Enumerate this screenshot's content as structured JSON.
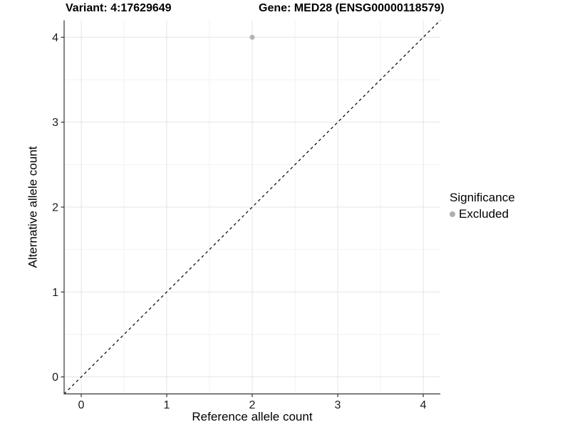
{
  "chart_data": {
    "type": "scatter",
    "title_left": "Variant: 4:17629649",
    "title_right": "Gene: MED28 (ENSG00000118579)",
    "xlabel": "Reference allele count",
    "ylabel": "Alternative allele count",
    "xlim": [
      -0.2,
      4.2
    ],
    "ylim": [
      -0.2,
      4.2
    ],
    "xticks": [
      0,
      1,
      2,
      3,
      4
    ],
    "yticks": [
      0,
      1,
      2,
      3,
      4
    ],
    "xticks_minor": [
      0.5,
      1.5,
      2.5,
      3.5
    ],
    "yticks_minor": [
      0.5,
      1.5,
      2.5,
      3.5
    ],
    "grid": "major and minor gridlines on white background",
    "reference_line": {
      "type": "identity",
      "slope": 1,
      "intercept": 0,
      "style": "dashed",
      "color": "#000000"
    },
    "series": [
      {
        "name": "Excluded",
        "marker": "circle",
        "color": "#b4b4b4",
        "points": [
          {
            "x": 2,
            "y": 4
          }
        ]
      }
    ],
    "legend": {
      "title": "Significance",
      "position": "right",
      "items": [
        {
          "label": "Excluded",
          "color": "#aeaeae"
        }
      ]
    },
    "colors": {
      "grid_major": "#e4e4e4",
      "grid_minor": "#f2f2f2",
      "axis": "#333333",
      "tick_text": "#1a1a1a",
      "title_text": "#000000",
      "point": "#b4b4b4"
    }
  }
}
